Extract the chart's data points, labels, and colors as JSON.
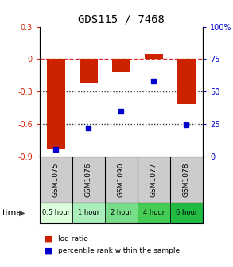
{
  "title": "GDS115 / 7468",
  "samples": [
    "GSM1075",
    "GSM1076",
    "GSM1090",
    "GSM1077",
    "GSM1078"
  ],
  "time_labels": [
    "0.5 hour",
    "1 hour",
    "2 hour",
    "4 hour",
    "6 hour"
  ],
  "time_colors": [
    "#ddfedd",
    "#aaeebb",
    "#77dd88",
    "#44cc55",
    "#22bb44"
  ],
  "log_ratios": [
    -0.83,
    -0.22,
    -0.12,
    0.05,
    -0.42
  ],
  "percentile_ranks": [
    5,
    22,
    35,
    58,
    24
  ],
  "bar_color": "#cc2200",
  "dot_color": "#0000cc",
  "ylim_left": [
    -0.9,
    0.3
  ],
  "ylim_right": [
    0,
    100
  ],
  "yticks_left": [
    0.3,
    0.0,
    -0.3,
    -0.6,
    -0.9
  ],
  "yticks_right": [
    100,
    75,
    50,
    25,
    0
  ],
  "hlines": [
    0.0,
    -0.3,
    -0.6
  ],
  "hline_styles": [
    "dashed",
    "dotted",
    "dotted"
  ],
  "hline_colors": [
    "#dd3333",
    "#333333",
    "#333333"
  ],
  "legend_bar_label": "log ratio",
  "legend_dot_label": "percentile rank within the sample",
  "time_row_label": "time",
  "bar_width": 0.55
}
